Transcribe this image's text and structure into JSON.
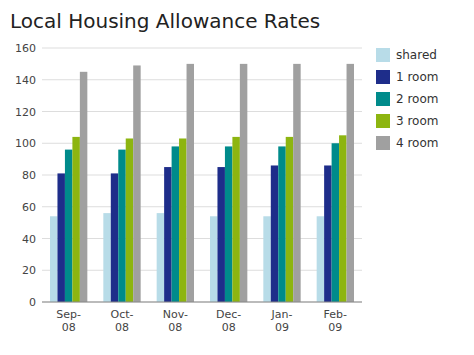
{
  "chart_data": {
    "type": "bar",
    "title": "Local Housing Allowance Rates",
    "categories": [
      "Sep-\n08",
      "Oct-\n08",
      "Nov-\n08",
      "Dec-\n08",
      "Jan-\n09",
      "Feb-\n09"
    ],
    "series": [
      {
        "name": "shared",
        "color": "#b8dce8",
        "values": [
          54,
          56,
          56,
          54,
          54,
          54
        ]
      },
      {
        "name": "1 room",
        "color": "#1e2d8a",
        "values": [
          81,
          81,
          85,
          85,
          86,
          86
        ]
      },
      {
        "name": "2 room",
        "color": "#008b8b",
        "values": [
          96,
          96,
          98,
          98,
          98,
          100
        ]
      },
      {
        "name": "3 room",
        "color": "#8db510",
        "values": [
          104,
          103,
          103,
          104,
          104,
          105
        ]
      },
      {
        "name": "4 room",
        "color": "#a0a0a0",
        "values": [
          145,
          149,
          150,
          150,
          150,
          150
        ]
      }
    ],
    "ylim": [
      0,
      160
    ],
    "yticks": [
      0,
      20,
      40,
      60,
      80,
      100,
      120,
      140,
      160
    ],
    "grid": true,
    "legend": "right"
  }
}
